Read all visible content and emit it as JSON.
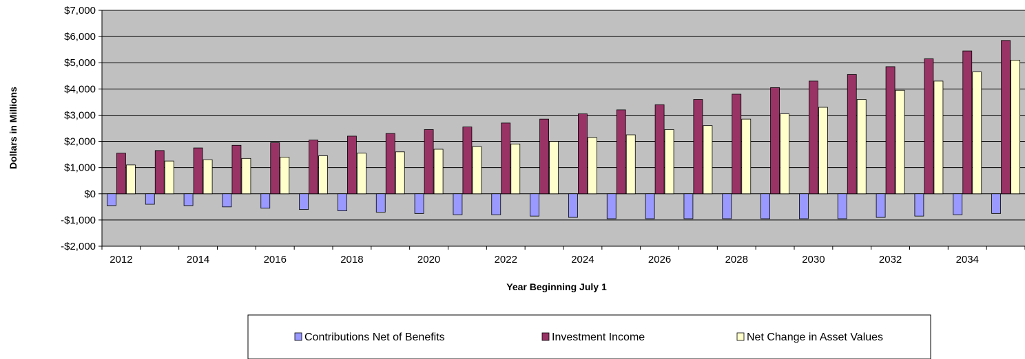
{
  "chart_data": {
    "type": "bar",
    "title": "",
    "xlabel": "Year Beginning July 1",
    "ylabel": "Dollars in Millions",
    "ylim": [
      -2000,
      7000
    ],
    "yticks": [
      -2000,
      -1000,
      0,
      1000,
      2000,
      3000,
      4000,
      5000,
      6000,
      7000
    ],
    "ytick_labels": [
      "-$2,000",
      "-$1,000",
      "$0",
      "$1,000",
      "$2,000",
      "$3,000",
      "$4,000",
      "$5,000",
      "$6,000",
      "$7,000"
    ],
    "categories": [
      2012,
      2013,
      2014,
      2015,
      2016,
      2017,
      2018,
      2019,
      2020,
      2021,
      2022,
      2023,
      2024,
      2025,
      2026,
      2027,
      2028,
      2029,
      2030,
      2031,
      2032,
      2033,
      2034,
      2035
    ],
    "xtick_labels": [
      "2012",
      "2014",
      "2016",
      "2018",
      "2020",
      "2022",
      "2024",
      "2026",
      "2028",
      "2030",
      "2032",
      "2034"
    ],
    "grid": true,
    "legend_position": "bottom",
    "series": [
      {
        "name": "Contributions Net of Benefits",
        "color": "#9999ff",
        "values": [
          -450,
          -400,
          -450,
          -500,
          -550,
          -600,
          -650,
          -700,
          -750,
          -800,
          -800,
          -850,
          -900,
          -950,
          -950,
          -950,
          -950,
          -950,
          -950,
          -950,
          -900,
          -850,
          -800,
          -750
        ]
      },
      {
        "name": "Investment Income",
        "color": "#993366",
        "values": [
          1550,
          1650,
          1750,
          1850,
          1950,
          2050,
          2200,
          2300,
          2450,
          2550,
          2700,
          2850,
          3050,
          3200,
          3400,
          3600,
          3800,
          4050,
          4300,
          4550,
          4850,
          5150,
          5450,
          5850
        ]
      },
      {
        "name": "Net Change in Asset Values",
        "color": "#ffffcc",
        "values": [
          1100,
          1250,
          1300,
          1350,
          1400,
          1450,
          1550,
          1600,
          1700,
          1800,
          1900,
          2000,
          2150,
          2250,
          2450,
          2600,
          2850,
          3050,
          3300,
          3600,
          3950,
          4300,
          4650,
          5100
        ]
      }
    ],
    "plot_background": "#c0c0c0"
  }
}
